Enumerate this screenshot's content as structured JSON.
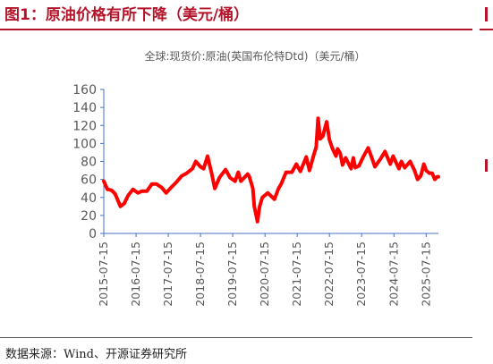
{
  "figure_title": "图1：原油价格有所下降（美元/桶）",
  "source_note": "数据来源：Wind、开源证券研究所",
  "colors": {
    "accent": "#B4152B",
    "series": "#FF0000",
    "axis": "#4472C4",
    "label": "#595959"
  },
  "chart_data": {
    "type": "line",
    "title": "全球:现货价:原油(英国布伦特Dtd)（美元/桶）",
    "xlabel": "",
    "ylabel": "",
    "ylim": [
      0,
      160
    ],
    "yticks": [
      0,
      20,
      40,
      60,
      80,
      100,
      120,
      140,
      160
    ],
    "xticks": [
      "2015-07-15",
      "2016-07-15",
      "2017-07-15",
      "2018-07-15",
      "2019-07-15",
      "2020-07-15",
      "2021-07-15",
      "2022-07-15",
      "2023-07-15",
      "2024-07-15",
      "2025-07-15"
    ],
    "xrange": [
      "2015-07-15",
      "2025-12-01"
    ],
    "grid": false,
    "legend": "none",
    "series": [
      {
        "x": [
          "2015-07-15",
          "2015-08-25",
          "2015-10-10",
          "2015-11-20",
          "2016-01-20",
          "2016-03-01",
          "2016-04-15",
          "2016-06-10",
          "2016-08-05",
          "2016-09-20",
          "2016-11-15",
          "2017-01-10",
          "2017-03-01",
          "2017-05-01",
          "2017-06-21",
          "2017-08-15",
          "2017-10-15",
          "2017-12-15",
          "2018-02-10",
          "2018-04-15",
          "2018-05-22",
          "2018-07-15",
          "2018-08-20",
          "2018-10-03",
          "2018-11-20",
          "2018-12-24",
          "2019-02-15",
          "2019-04-25",
          "2019-06-15",
          "2019-08-10",
          "2019-09-16",
          "2019-10-15",
          "2019-12-31",
          "2020-01-20",
          "2020-02-28",
          "2020-03-15",
          "2020-04-21",
          "2020-05-15",
          "2020-06-15",
          "2020-08-15",
          "2020-10-30",
          "2020-12-15",
          "2021-01-15",
          "2021-03-10",
          "2021-05-15",
          "2021-07-05",
          "2021-08-20",
          "2021-10-25",
          "2021-12-01",
          "2022-01-15",
          "2022-02-15",
          "2022-03-08",
          "2022-04-01",
          "2022-05-01",
          "2022-06-14",
          "2022-07-15",
          "2022-08-15",
          "2022-09-27",
          "2022-10-15",
          "2022-11-15",
          "2022-12-10",
          "2023-01-15",
          "2023-03-17",
          "2023-04-12",
          "2023-05-04",
          "2023-06-15",
          "2023-08-01",
          "2023-09-27",
          "2023-11-15",
          "2023-12-12",
          "2024-02-15",
          "2024-04-05",
          "2024-06-04",
          "2024-07-05",
          "2024-09-10",
          "2024-10-07",
          "2024-11-15",
          "2025-01-15",
          "2025-03-05",
          "2025-04-09",
          "2025-05-15",
          "2025-06-19",
          "2025-07-15",
          "2025-08-20",
          "2025-09-20",
          "2025-10-21",
          "2025-11-15",
          "2025-12-01"
        ],
        "values": [
          58,
          49,
          48,
          44,
          30,
          33,
          42,
          49,
          45,
          47,
          47,
          55,
          55,
          51,
          45,
          51,
          57,
          64,
          67,
          72,
          80,
          74,
          72,
          86,
          66,
          50,
          62,
          71,
          62,
          58,
          68,
          58,
          66,
          63,
          50,
          30,
          13,
          30,
          40,
          45,
          38,
          50,
          55,
          68,
          68,
          77,
          69,
          85,
          70,
          86,
          96,
          128,
          105,
          108,
          124,
          104,
          95,
          86,
          94,
          89,
          76,
          84,
          72,
          84,
          73,
          75,
          85,
          95,
          82,
          74,
          83,
          91,
          77,
          86,
          72,
          80,
          73,
          80,
          70,
          60,
          64,
          77,
          70,
          67,
          67,
          60,
          63,
          63
        ]
      }
    ]
  }
}
